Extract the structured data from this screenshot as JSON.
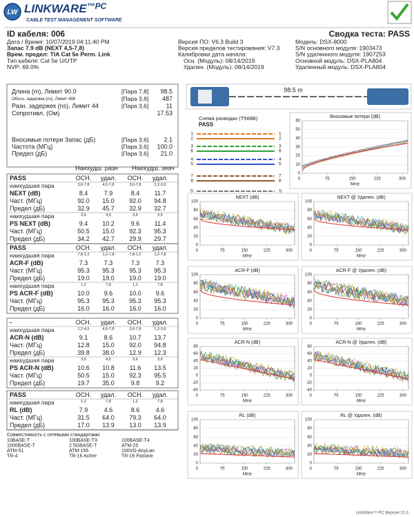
{
  "header": {
    "logo": "LW",
    "brand": "LINKWARE",
    "brand_suffix": "™PC",
    "tagline": "CABLE TEST MANAGEMENT SOFTWARE"
  },
  "summary": {
    "cable_id": "ID кабеля: 006",
    "result": "Сводка теста: PASS",
    "col1": [
      "Дата / Время: 10/07/2019 04:11:40 PM",
      "Запас 7.9 dB (NEXT 4,5-7,8)",
      "Врем. предел: TIA Cat 5e Perm. Link",
      "Тип кабеля: Cat 5e U/UTP",
      "NVP: 69.0%"
    ],
    "col2": [
      "Версия ПО: V6.3 Build 3",
      "Версия пределов тестирования: V7.3",
      "Калибровки дата начала:",
      "Осн. (Модуль): 08/14/2019",
      "Удален. (Модуль): 08/14/2019"
    ],
    "col3": [
      "Модель: DSX-8000",
      "S/N основного модуля: 1903473",
      "S/N удаленного модуля: 1907253",
      "Основной модуль: DSX-PLA804",
      "Удаленный модуль: DSX-PLA804"
    ]
  },
  "measurements": {
    "rows": [
      {
        "label": "Длина (m), Лимит 90.0",
        "pair": "[Пара 7,8]",
        "value": "98.5"
      },
      {
        "label": "Обосн. задержка (ns), Лимит 498",
        "pair": "[Пара 3,6]",
        "value": "487"
      },
      {
        "label": "Разн. задержек (ns), Лимит 44",
        "pair": "[Пара 3,6]",
        "value": "11"
      },
      {
        "label": "Сопротивл. (Ом)",
        "value": "17.53"
      },
      {
        "label": "Вносимые потери Запас (дБ)",
        "pair": "[Пара 3,6]",
        "value": "2.1"
      },
      {
        "label": "Частота (МГц)",
        "pair": "[Пара 3,6]",
        "value": "100.0"
      },
      {
        "label": "Предел (дБ)",
        "pair": "[Пара 3,6]",
        "value": "21.0"
      }
    ]
  },
  "table": {
    "group_headers": [
      "Наихудш. разн",
      "Наихудш. знач"
    ],
    "sections": [
      {
        "rows": [
          [
            "PASS",
            "ОСН.",
            "удал.",
            "ОСН.",
            "удал."
          ],
          [
            "наихудшая пара",
            "3,6-7,8",
            "4,5-7,8",
            "3,6-7,8",
            "1,2-3,6"
          ],
          [
            "NEXT (dB)",
            "8.4",
            "7.9",
            "8.4",
            "11.7"
          ],
          [
            "Част. (МГц)",
            "92.0",
            "15.0",
            "92.0",
            "94.8"
          ],
          [
            "Предел (дБ)",
            "32.9",
            "45.7",
            "32.9",
            "32.7"
          ],
          [
            "наихудшая пара",
            "3,6",
            "4,5",
            "3,6",
            "3,6"
          ],
          [
            "PS NEXT (dB)",
            "9.4",
            "10.2",
            "9.6",
            "11.4"
          ],
          [
            "Част. (МГц)",
            "50.5",
            "15.0",
            "92.3",
            "95.3"
          ],
          [
            "Предел (дБ)",
            "34.2",
            "42.7",
            "29.9",
            "29.7"
          ]
        ]
      },
      {
        "rows": [
          [
            "PASS",
            "ОСН.",
            "удал.",
            "ОСН.",
            "удал."
          ],
          [
            "наихудшая пара",
            "7,8-1,2",
            "1,2-7,8",
            "7,8-1,2",
            "1,2-7,8"
          ],
          [
            "ACR-F (dB)",
            "7.3",
            "7.3",
            "7.3",
            "7.3"
          ],
          [
            "Част. (МГц)",
            "95.3",
            "95.3",
            "95.3",
            "95.3"
          ],
          [
            "Предел (дБ)",
            "19.0",
            "19.0",
            "19.0",
            "19.0"
          ],
          [
            "наихудшая пара",
            "1,2",
            "7,8",
            "1,2",
            "7,8"
          ],
          [
            "PS ACR-F (dB)",
            "10.0",
            "9.6",
            "10.0",
            "9.6"
          ],
          [
            "Част. (МГц)",
            "95.3",
            "95.3",
            "95.3",
            "95.3"
          ],
          [
            "Предел (дБ)",
            "16.0",
            "16.0",
            "16.0",
            "16.0"
          ]
        ]
      },
      {
        "rows": [
          [
            "-",
            "ОСН.",
            "удал.",
            "ОСН.",
            "удал."
          ],
          [
            "наихудшая пара",
            "1,2-4,5",
            "4,5-7,8",
            "3,6-7,8",
            "1,2-3,6"
          ],
          [
            "ACR-N (dB)",
            "9.1",
            "8.6",
            "10.7",
            "13.7"
          ],
          [
            "Част. (МГц)",
            "12.8",
            "15.0",
            "92.0",
            "94.8"
          ],
          [
            "Предел (дБ)",
            "39.8",
            "38.0",
            "12.9",
            "12.3"
          ],
          [
            "наихудшая пара",
            "3,6",
            "4,5",
            "3,6",
            "3,6"
          ],
          [
            "PS ACR-N (dB)",
            "10.6",
            "10.8",
            "11.6",
            "13.5"
          ],
          [
            "Част. (МГц)",
            "50.5",
            "15.0",
            "92.3",
            "95.5"
          ],
          [
            "Предел (дБ)",
            "19.7",
            "35.0",
            "9.8",
            "9.2"
          ]
        ]
      },
      {
        "rows": [
          [
            "PASS",
            "ОСН.",
            "удал.",
            "ОСН.",
            "удал."
          ],
          [
            "наихудшая пара",
            "1,2",
            "7,8",
            "1,2",
            "7,8"
          ],
          [
            "RL (dB)",
            "7.9",
            "4.6",
            "8.6",
            "4.6"
          ],
          [
            "Част. (МГц)",
            "31.5",
            "64.0",
            "79.3",
            "64.0"
          ],
          [
            "Предел (дБ)",
            "17.0",
            "13.9",
            "13.0",
            "13.9"
          ]
        ]
      }
    ]
  },
  "standards": {
    "title": "Совместимость с сетевыми стандартами:",
    "items": [
      "10BASE-T",
      "100BASE-TX",
      "100BASE-T4",
      "1000BASE-T",
      "2.5GBASE-T",
      "ATM-25",
      "ATM-51",
      "ATM-155",
      "100VG-AnyLan",
      "TR-4",
      "TR-16 Active",
      "TR-16 Passive"
    ]
  },
  "device": {
    "length": "98.5 m"
  },
  "wiremap": {
    "title": "Схема разводки (T568B)",
    "result": "PASS",
    "pins": [
      "1",
      "2",
      "3",
      "6",
      "4",
      "5",
      "7",
      "8",
      "S"
    ]
  },
  "charts": [
    {
      "title": "Вносимые потери (dB)",
      "yticks": [
        0,
        10,
        20,
        30,
        40,
        50,
        60
      ],
      "xticks": [
        0,
        75,
        150,
        225,
        300
      ],
      "x_label": "MHz"
    },
    {
      "title": "NEXT (dB)",
      "yticks": [
        0,
        20,
        40,
        60,
        80,
        100
      ],
      "xticks": [
        0,
        75,
        150,
        225,
        300
      ],
      "x_label": "MHz"
    },
    {
      "title": "NEXT @ Удален. (dB)",
      "yticks": [
        0,
        20,
        40,
        60,
        80,
        100
      ],
      "xticks": [
        0,
        75,
        150,
        225,
        300
      ],
      "x_label": "MHz"
    },
    {
      "title": "ACR-F (dB)",
      "yticks": [
        0,
        20,
        40,
        60,
        80,
        100
      ],
      "xticks": [
        0,
        75,
        150,
        225,
        300
      ],
      "x_label": "MHz"
    },
    {
      "title": "ACR-F @ Удален. (dB)",
      "yticks": [
        0,
        20,
        40,
        60,
        80,
        100
      ],
      "xticks": [
        0,
        75,
        150,
        225,
        300
      ],
      "x_label": "MHz"
    },
    {
      "title": "ACR-N (dB)",
      "yticks": [
        -40,
        -20,
        0,
        20,
        40,
        60,
        80
      ],
      "xticks": [
        0,
        75,
        150,
        225,
        300
      ],
      "x_label": "MHz"
    },
    {
      "title": "ACR-N @ Удален. (dB)",
      "yticks": [
        -40,
        -20,
        0,
        20,
        40,
        60,
        80
      ],
      "xticks": [
        0,
        75,
        150,
        225,
        300
      ],
      "x_label": "MHz"
    },
    {
      "title": "RL (dB)",
      "yticks": [
        0,
        20,
        40,
        60,
        80,
        100
      ],
      "xticks": [
        0,
        75,
        150,
        225,
        300
      ],
      "x_label": "MHz"
    },
    {
      "title": "RL @ Удален. (dB)",
      "yticks": [
        0,
        20,
        40,
        60,
        80,
        100
      ],
      "xticks": [
        0,
        75,
        150,
        225,
        300
      ],
      "x_label": "MHz"
    }
  ],
  "footer": "LinkWare™ PC Версия 10.3"
}
